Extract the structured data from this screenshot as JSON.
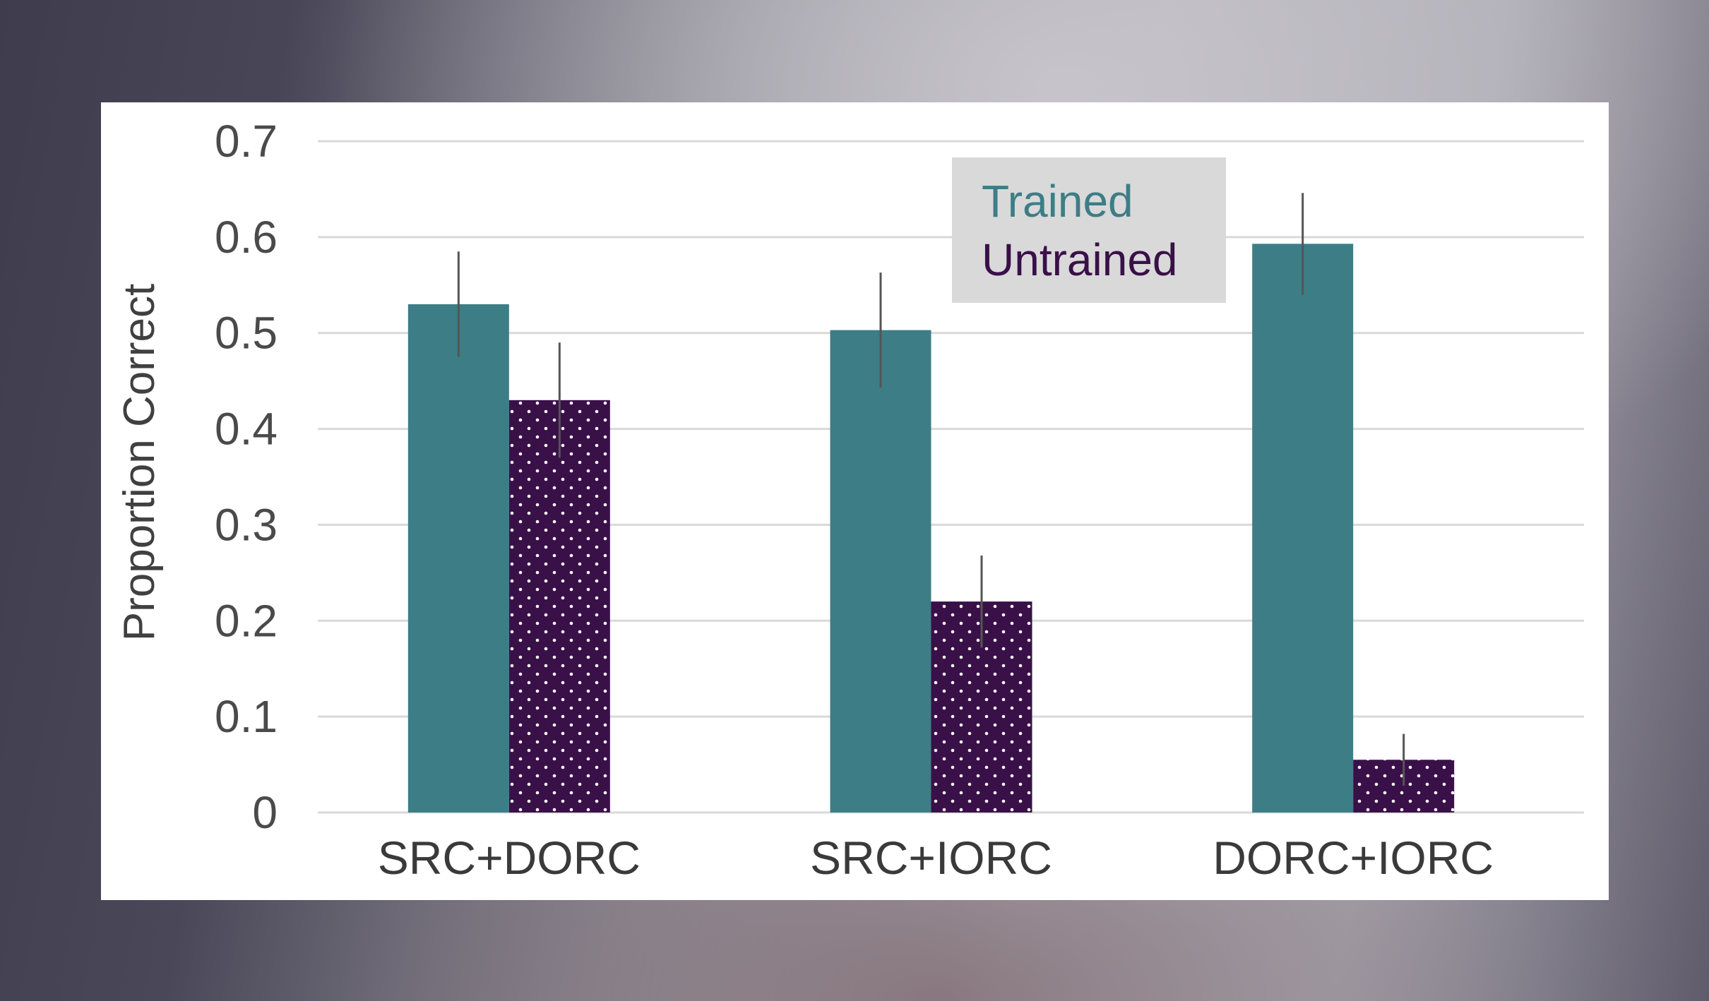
{
  "chart_data": {
    "type": "bar",
    "title": "",
    "xlabel": "",
    "ylabel": "Proportion Correct",
    "ylim": [
      0,
      0.7
    ],
    "yticks": [
      "0",
      "0.1",
      "0.2",
      "0.3",
      "0.4",
      "0.5",
      "0.6",
      "0.7"
    ],
    "grid": true,
    "legend_position": "top-center",
    "categories": [
      "SRC+DORC",
      "SRC+IORC",
      "DORC+IORC"
    ],
    "series": [
      {
        "name": "Trained",
        "color": "#3d7d86",
        "pattern": "solid",
        "values": [
          0.53,
          0.503,
          0.593
        ],
        "error": [
          0.055,
          0.06,
          0.053
        ]
      },
      {
        "name": "Untrained",
        "color": "#3a1048",
        "pattern": "dotted",
        "values": [
          0.43,
          0.22,
          0.055
        ],
        "error": [
          0.06,
          0.048,
          0.027
        ]
      }
    ]
  }
}
